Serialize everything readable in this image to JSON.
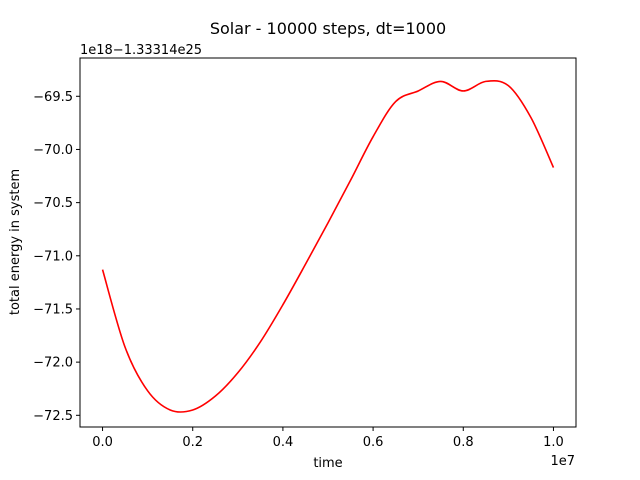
{
  "chart_data": {
    "type": "line",
    "title": "Solar - 10000 steps, dt=1000",
    "xlabel": "time",
    "ylabel": "total energy in system",
    "x_offset_text": "1e7",
    "y_offset_text": "1e18−1.33314e25",
    "xlim": [
      -0.05,
      1.05
    ],
    "ylim": [
      -72.61,
      -69.14
    ],
    "x_ticks": [
      0.0,
      0.2,
      0.4,
      0.6,
      0.8,
      1.0
    ],
    "x_tick_labels": [
      "0.0",
      "0.2",
      "0.4",
      "0.6",
      "0.8",
      "1.0"
    ],
    "y_ticks": [
      -69.5,
      -70.0,
      -70.5,
      -71.0,
      -71.5,
      -72.0,
      -72.5
    ],
    "y_tick_labels": [
      "−69.5",
      "−70.0",
      "−70.5",
      "−71.0",
      "−71.5",
      "−72.0",
      "−72.5"
    ],
    "grid": false,
    "series": [
      {
        "color": "#ff0000",
        "x": [
          0.0,
          0.05,
          0.1,
          0.15,
          0.2,
          0.25,
          0.3,
          0.35,
          0.4,
          0.45,
          0.5,
          0.55,
          0.6,
          0.65,
          0.7,
          0.75,
          0.8,
          0.85,
          0.9,
          0.95,
          1.0
        ],
        "y": [
          -71.13,
          -71.86,
          -72.27,
          -72.45,
          -72.45,
          -72.32,
          -72.1,
          -71.81,
          -71.46,
          -71.08,
          -70.69,
          -70.29,
          -69.88,
          -69.55,
          -69.45,
          -69.36,
          -69.45,
          -69.36,
          -69.4,
          -69.7,
          -70.17
        ]
      }
    ]
  }
}
